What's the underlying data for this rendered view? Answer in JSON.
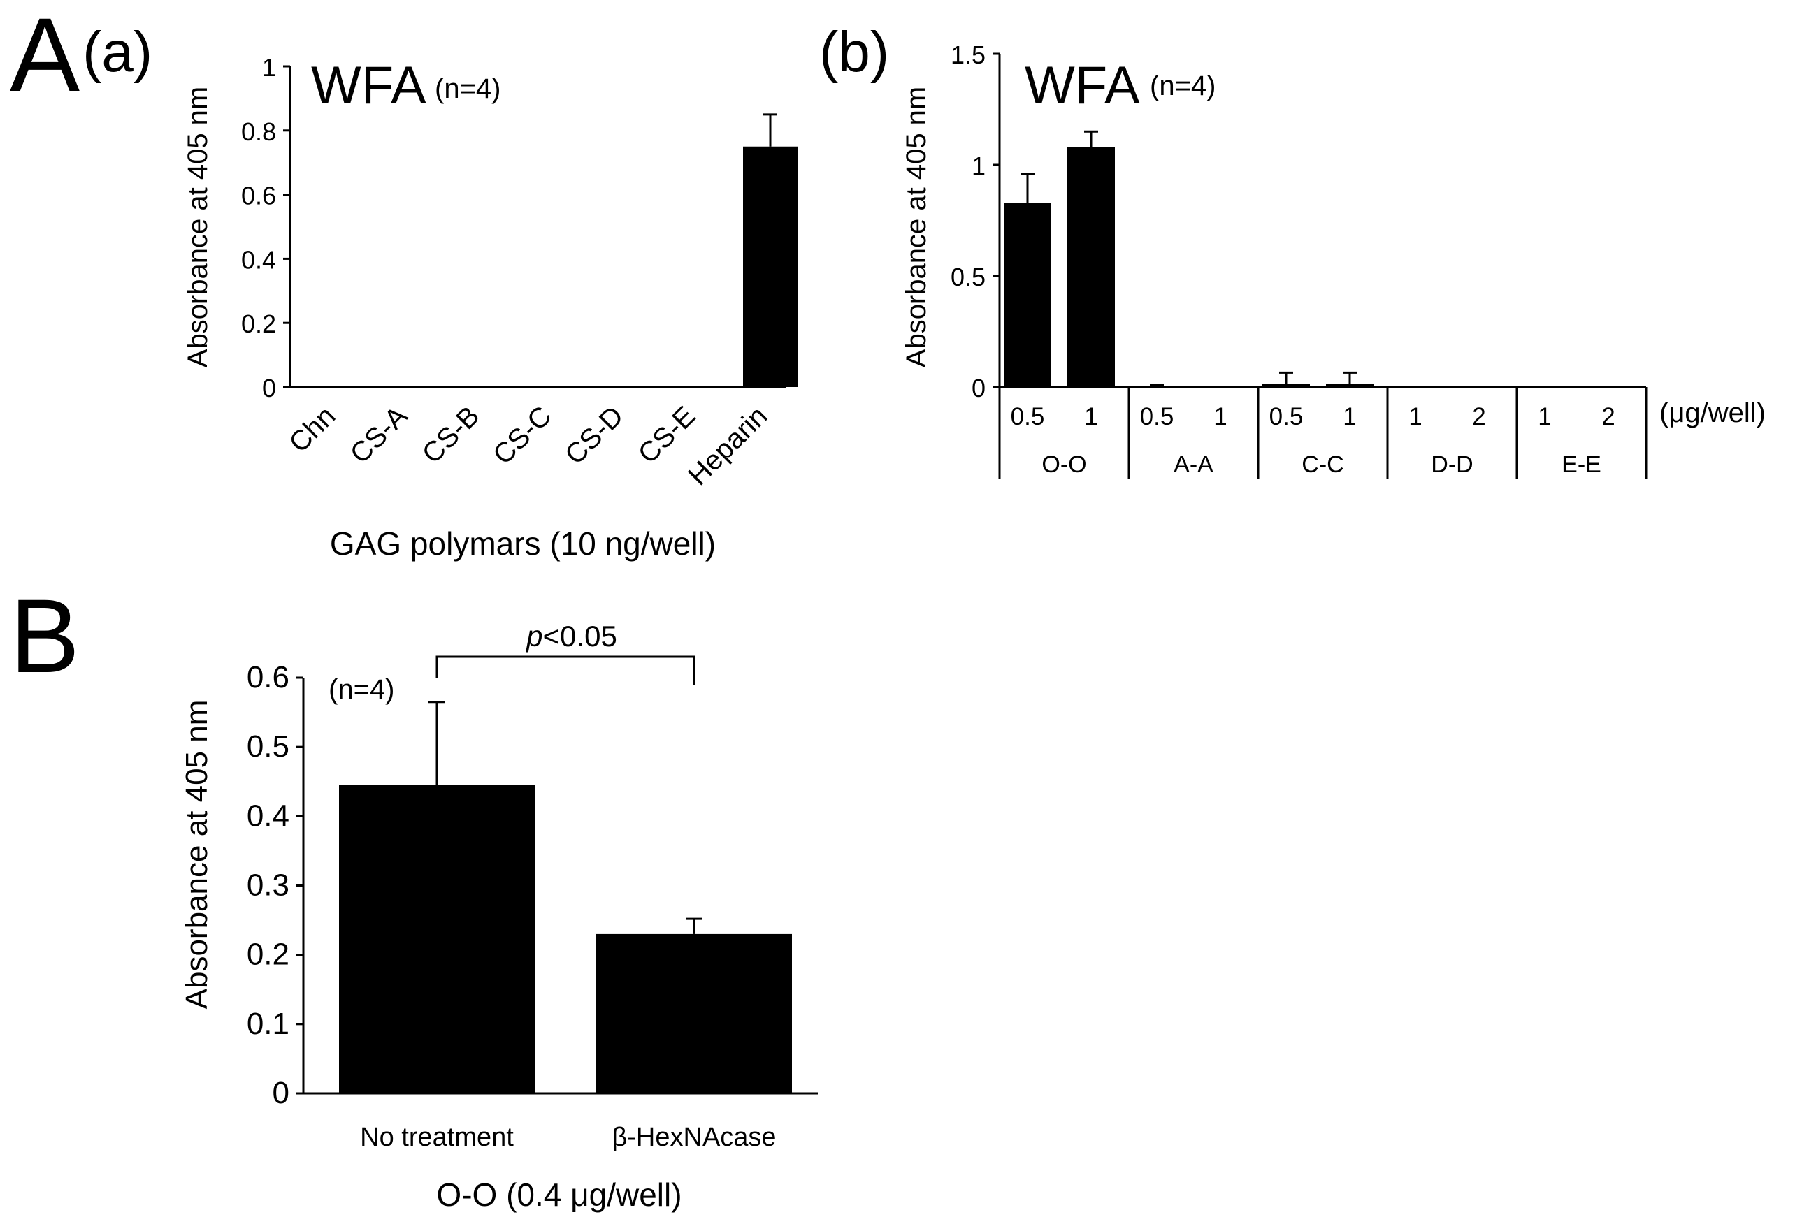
{
  "figure_labels": {
    "A": "A",
    "a": "(a)",
    "b": "(b)",
    "B": "B"
  },
  "colors": {
    "bar": "#000000",
    "axis": "#000000",
    "background": "#ffffff"
  },
  "chart_data": [
    {
      "id": "Aa",
      "type": "bar",
      "title": "WFA",
      "n_label": "(n=4)",
      "ylabel": "Absorbance at 405 nm",
      "xlabel": "GAG polymars (10 ng/well)",
      "categories": [
        "Chn",
        "CS-A",
        "CS-B",
        "CS-C",
        "CS-D",
        "CS-E",
        "Heparin"
      ],
      "values": [
        0,
        0,
        0,
        0,
        0,
        0,
        0.75
      ],
      "errors": [
        0,
        0,
        0,
        0,
        0,
        0,
        0.1
      ],
      "ylim": [
        0,
        1
      ],
      "yticks": [
        0,
        0.2,
        0.4,
        0.6,
        0.8,
        1
      ],
      "ytick_labels": [
        "0",
        "0.2",
        "0.4",
        "0.6",
        "0.8",
        "1"
      ],
      "grid": false
    },
    {
      "id": "Ab",
      "type": "bar",
      "title": "WFA",
      "n_label": "(n=4)",
      "ylabel": "Absorbance at 405 nm",
      "unit_label": "(μg/well)",
      "groups": [
        {
          "name": "O-O",
          "concentrations": [
            "0.5",
            "1"
          ],
          "values": [
            0.83,
            1.08
          ],
          "errors": [
            0.13,
            0.07
          ]
        },
        {
          "name": "A-A",
          "concentrations": [
            "0.5",
            "1"
          ],
          "values": [
            0.005,
            0
          ],
          "errors": [
            0.005,
            0
          ]
        },
        {
          "name": "C-C",
          "concentrations": [
            "0.5",
            "1"
          ],
          "values": [
            0.015,
            0.015
          ],
          "errors": [
            0.05,
            0.05
          ]
        },
        {
          "name": "D-D",
          "concentrations": [
            "1",
            "2"
          ],
          "values": [
            0,
            0
          ],
          "errors": [
            0,
            0
          ]
        },
        {
          "name": "E-E",
          "concentrations": [
            "1",
            "2"
          ],
          "values": [
            0,
            0
          ],
          "errors": [
            0,
            0
          ]
        }
      ],
      "ylim": [
        0,
        1.5
      ],
      "yticks": [
        0,
        0.5,
        1,
        1.5
      ],
      "ytick_labels": [
        "0",
        "0.5",
        "1",
        "1.5"
      ],
      "grid": false
    },
    {
      "id": "B",
      "type": "bar",
      "n_label": "(n=4)",
      "ylabel": "Absorbance at 405 nm",
      "xlabel": "O-O (0.4 μg/well)",
      "categories": [
        "No treatment",
        "β-HexNAcase"
      ],
      "values": [
        0.445,
        0.23
      ],
      "errors": [
        0.12,
        0.022
      ],
      "significance": {
        "p_italic": "p",
        "rest": "<0.05"
      },
      "ylim": [
        0,
        0.6
      ],
      "yticks": [
        0,
        0.1,
        0.2,
        0.3,
        0.4,
        0.5,
        0.6
      ],
      "ytick_labels": [
        "0",
        "0.1",
        "0.2",
        "0.3",
        "0.4",
        "0.5",
        "0.6"
      ],
      "grid": false
    }
  ]
}
